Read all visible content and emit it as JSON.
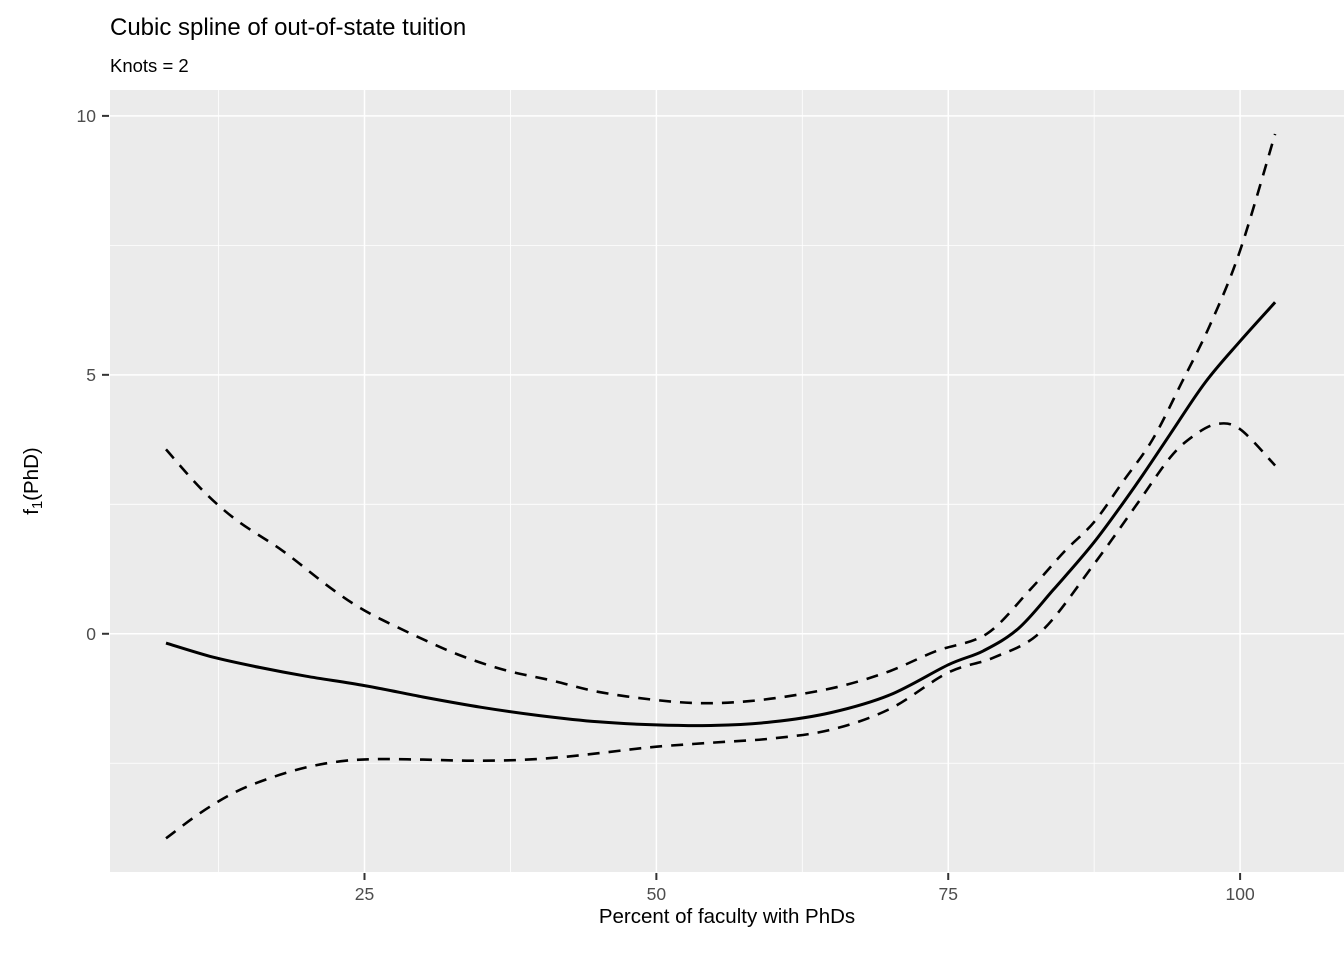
{
  "chart_data": {
    "type": "line",
    "title": "Cubic spline of out-of-state tuition",
    "subtitle": "Knots = 2",
    "xlabel": "Percent of faculty with PhDs",
    "ylabel": "f1(PhD)",
    "ylabel_parts": {
      "base": "f",
      "sub": "1",
      "rest": "(PhD)"
    },
    "knots": 2,
    "xlim": [
      3.2,
      108.9
    ],
    "ylim": [
      -4.6,
      10.5
    ],
    "x_ticks": [
      25,
      50,
      75,
      100
    ],
    "x_minor_ticks": [
      12.5,
      37.5,
      62.5,
      87.5
    ],
    "y_ticks": [
      0,
      5,
      10
    ],
    "y_minor_ticks": [
      -2.5,
      2.5,
      7.5
    ],
    "grid": "white major and minor gridlines on gray panel",
    "legend": "none",
    "series": [
      {
        "name": "spline-fit",
        "linetype": "solid",
        "x": [
          8,
          12,
          16,
          20,
          25,
          30,
          35,
          40,
          45,
          50,
          55,
          60,
          65,
          70,
          75,
          78,
          81,
          84,
          87.5,
          91,
          94,
          97,
          100,
          103
        ],
        "y": [
          -0.18,
          -0.45,
          -0.65,
          -0.82,
          -1.0,
          -1.22,
          -1.42,
          -1.58,
          -1.7,
          -1.76,
          -1.77,
          -1.7,
          -1.52,
          -1.18,
          -0.6,
          -0.33,
          0.1,
          0.85,
          1.77,
          2.85,
          3.85,
          4.85,
          5.65,
          6.4
        ]
      },
      {
        "name": "ci-upper",
        "linetype": "dashed",
        "x": [
          8,
          11,
          14,
          18,
          22,
          25,
          29,
          33,
          37,
          41,
          45,
          50,
          54,
          58,
          62,
          66,
          70,
          74,
          78.3,
          82,
          85,
          87.5,
          90,
          92.5,
          95,
          97.5,
          100,
          103
        ],
        "y": [
          3.56,
          2.8,
          2.2,
          1.6,
          0.9,
          0.45,
          0.0,
          -0.4,
          -0.7,
          -0.9,
          -1.12,
          -1.28,
          -1.34,
          -1.3,
          -1.18,
          -1.0,
          -0.72,
          -0.33,
          0.0,
          0.85,
          1.6,
          2.16,
          2.95,
          3.75,
          4.85,
          6.0,
          7.4,
          9.65
        ]
      },
      {
        "name": "ci-lower",
        "linetype": "dashed",
        "x": [
          8,
          11,
          14,
          17,
          20,
          23,
          26,
          30,
          34,
          38,
          42,
          46,
          50,
          55,
          60,
          65,
          70,
          75,
          79,
          83,
          87.5,
          91,
          94,
          96,
          98,
          100,
          103
        ],
        "y": [
          -3.95,
          -3.45,
          -3.05,
          -2.78,
          -2.58,
          -2.46,
          -2.42,
          -2.43,
          -2.45,
          -2.44,
          -2.38,
          -2.28,
          -2.18,
          -2.1,
          -2.02,
          -1.85,
          -1.45,
          -0.75,
          -0.45,
          0.05,
          1.35,
          2.45,
          3.4,
          3.82,
          4.05,
          3.95,
          3.25
        ]
      }
    ]
  },
  "colors": {
    "panel_bg": "#EBEBEB",
    "grid": "#FFFFFF",
    "line": "#000000",
    "tick_mark": "#333333",
    "tick_text": "#4D4D4D",
    "text": "#000000"
  }
}
